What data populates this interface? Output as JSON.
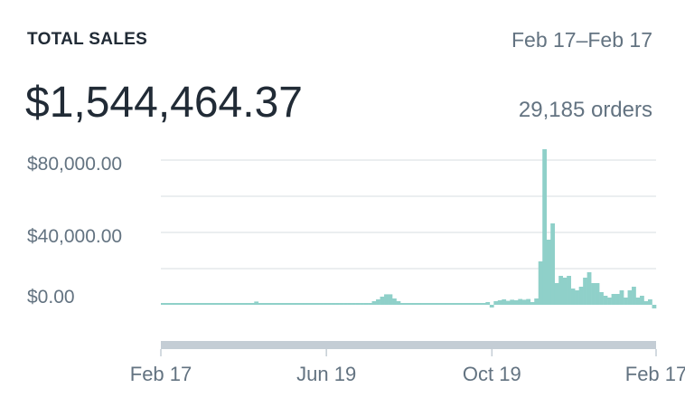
{
  "header": {
    "title": "TOTAL SALES",
    "date_range": "Feb 17–Feb 17",
    "total": "$1,544,464.37",
    "orders": "29,185 orders"
  },
  "chart_data": {
    "type": "bar",
    "title": "TOTAL SALES",
    "xlabel": "",
    "ylabel": "",
    "bin_days": 3,
    "ylim": [
      -5000,
      85000
    ],
    "gridlines": [
      20000,
      40000,
      60000,
      80000
    ],
    "y_ticks": [
      {
        "value": 80000,
        "label": "$80,000.00"
      },
      {
        "value": 40000,
        "label": "$40,000.00"
      },
      {
        "value": 0,
        "label": "$0.00"
      }
    ],
    "x_ticks": [
      {
        "day": 0,
        "label": "Feb 17"
      },
      {
        "day": 122,
        "label": "Jun 19"
      },
      {
        "day": 244,
        "label": "Oct 19"
      },
      {
        "day": 365,
        "label": "Feb 17"
      }
    ],
    "color": "#8fd0c9",
    "values": [
      1000,
      1000,
      1000,
      1000,
      1000,
      1000,
      1000,
      1000,
      1000,
      1000,
      1000,
      1000,
      1000,
      1000,
      1000,
      1000,
      1000,
      1000,
      1000,
      1000,
      1000,
      1000,
      1000,
      1800,
      1000,
      1000,
      1000,
      1000,
      1000,
      1000,
      1000,
      1000,
      1000,
      1000,
      1000,
      1000,
      1000,
      1000,
      1000,
      1000,
      1000,
      1000,
      1000,
      1000,
      1000,
      1000,
      1000,
      1000,
      1000,
      1000,
      1000,
      1000,
      2000,
      3000,
      4500,
      5800,
      5800,
      3500,
      2000,
      1000,
      1000,
      1000,
      1000,
      1000,
      1000,
      1000,
      1000,
      1000,
      1000,
      1000,
      1000,
      1000,
      1000,
      1000,
      1000,
      1000,
      1000,
      1000,
      1000,
      1000,
      1500,
      -1500,
      2000,
      2500,
      3000,
      2200,
      2800,
      2500,
      3200,
      2800,
      3200,
      1500,
      3500,
      24000,
      86000,
      36000,
      45000,
      12000,
      16000,
      15000,
      16000,
      9000,
      8000,
      10000,
      15000,
      18000,
      12000,
      12000,
      7000,
      5000,
      4000,
      6000,
      6000,
      8000,
      4000,
      8000,
      10000,
      4000,
      5000,
      2000,
      3000,
      -2000
    ]
  }
}
